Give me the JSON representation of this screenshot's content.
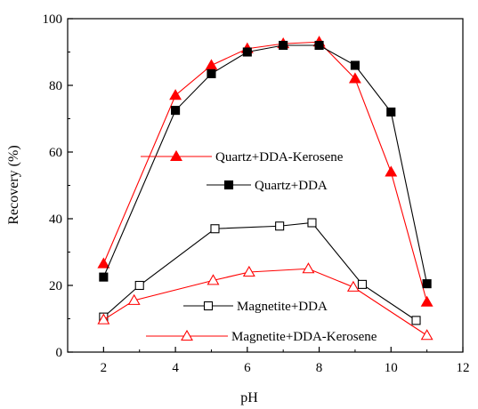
{
  "chart_data": {
    "type": "line",
    "xlabel": "pH",
    "ylabel": "Recovery (%)",
    "xlim": [
      1,
      12
    ],
    "ylim": [
      0,
      100
    ],
    "x_ticks": [
      2,
      4,
      6,
      8,
      10,
      12
    ],
    "y_ticks": [
      0,
      20,
      40,
      60,
      80,
      100
    ],
    "grid": false,
    "series": [
      {
        "name": "Quartz+DDA-Kerosene",
        "color": "#ff0000",
        "line_color": "#ff0000",
        "marker": "triangle-filled",
        "x": [
          2,
          4,
          5,
          6,
          7,
          8,
          9,
          10,
          11
        ],
        "y": [
          26.5,
          77,
          86,
          91,
          92.5,
          93,
          82,
          54,
          15
        ]
      },
      {
        "name": "Quartz+DDA",
        "color": "#000000",
        "line_color": "#000000",
        "marker": "square-filled",
        "x": [
          2,
          4,
          5,
          6,
          7,
          8,
          9,
          10,
          11
        ],
        "y": [
          22.5,
          72.5,
          83.5,
          90,
          92,
          92,
          86,
          72,
          20.5
        ]
      },
      {
        "name": "Magnetite+DDA",
        "color": "#000000",
        "line_color": "#000000",
        "marker": "square-open",
        "x": [
          2,
          3,
          5.1,
          6.9,
          7.8,
          9.2,
          10.7
        ],
        "y": [
          10.5,
          20,
          37,
          37.8,
          38.8,
          20.3,
          9.5
        ]
      },
      {
        "name": "Magnetite+DDA-Kerosene",
        "color": "#ff0000",
        "line_color": "#ff0000",
        "marker": "triangle-open",
        "x": [
          2,
          2.85,
          5.05,
          6.05,
          7.7,
          8.95,
          11
        ],
        "y": [
          9.7,
          15.5,
          21.5,
          24,
          25,
          19.5,
          5
        ]
      }
    ],
    "legend": [
      {
        "series": 0,
        "label": "Quartz+DDA-Kerosene"
      },
      {
        "series": 1,
        "label": "Quartz+DDA"
      },
      {
        "series": 2,
        "label": "Magnetite+DDA"
      },
      {
        "series": 3,
        "label": "Magnetite+DDA-Kerosene"
      }
    ]
  }
}
